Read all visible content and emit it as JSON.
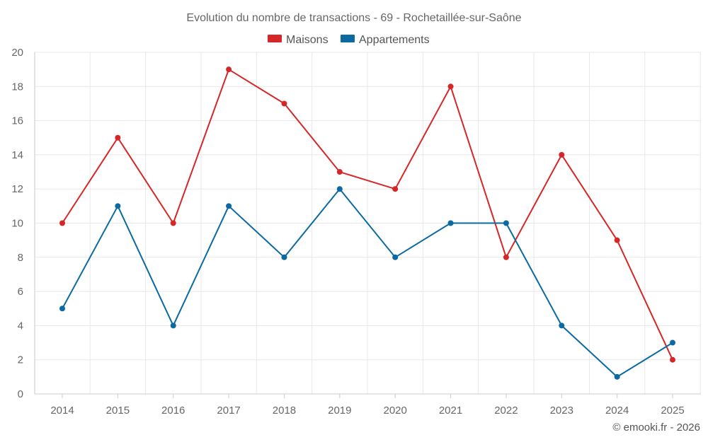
{
  "chart_data": {
    "type": "line",
    "title": "Evolution du nombre de transactions - 69 - Rochetaillée-sur-Saône",
    "xlabel": "",
    "ylabel": "",
    "categories": [
      "2014",
      "2015",
      "2016",
      "2017",
      "2018",
      "2019",
      "2020",
      "2021",
      "2022",
      "2023",
      "2024",
      "2025"
    ],
    "ylim": [
      0,
      20
    ],
    "yticks": [
      0,
      2,
      4,
      6,
      8,
      10,
      12,
      14,
      16,
      18,
      20
    ],
    "grid": true,
    "legend_position": "top-center",
    "series": [
      {
        "name": "Maisons",
        "color": "#d62728",
        "values": [
          10,
          15,
          10,
          19,
          17,
          13,
          12,
          18,
          8,
          14,
          9,
          2
        ]
      },
      {
        "name": "Appartements",
        "color": "#0a6aa1",
        "values": [
          5,
          11,
          4,
          11,
          8,
          12,
          8,
          10,
          10,
          4,
          1,
          3
        ]
      }
    ]
  },
  "credit": "© emooki.fr - 2026"
}
